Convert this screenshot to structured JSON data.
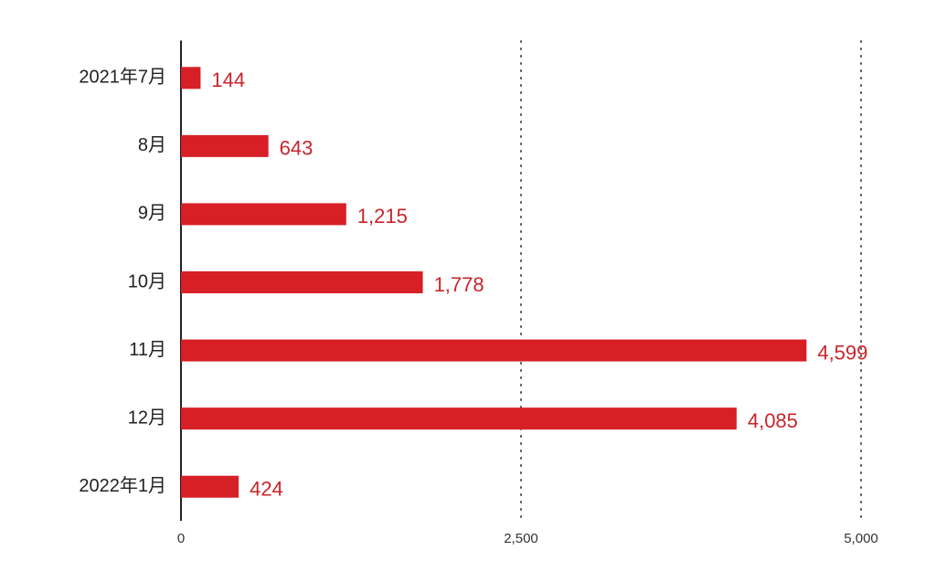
{
  "chart_data": {
    "type": "bar",
    "orientation": "horizontal",
    "categories": [
      "2021年7月",
      "8月",
      "9月",
      "10月",
      "11月",
      "12月",
      "2022年1月"
    ],
    "values": [
      144,
      643,
      1215,
      1778,
      4599,
      4085,
      424
    ],
    "value_labels": [
      "144",
      "643",
      "1,215",
      "1,778",
      "4,599",
      "4,085",
      "424"
    ],
    "color": "#d71f26",
    "xlim": [
      0,
      5000
    ],
    "xticks": [
      0,
      {
        "value": 2500,
        "label": "2,500"
      },
      {
        "value": 5000,
        "label": "5,000"
      }
    ],
    "grid": true
  }
}
